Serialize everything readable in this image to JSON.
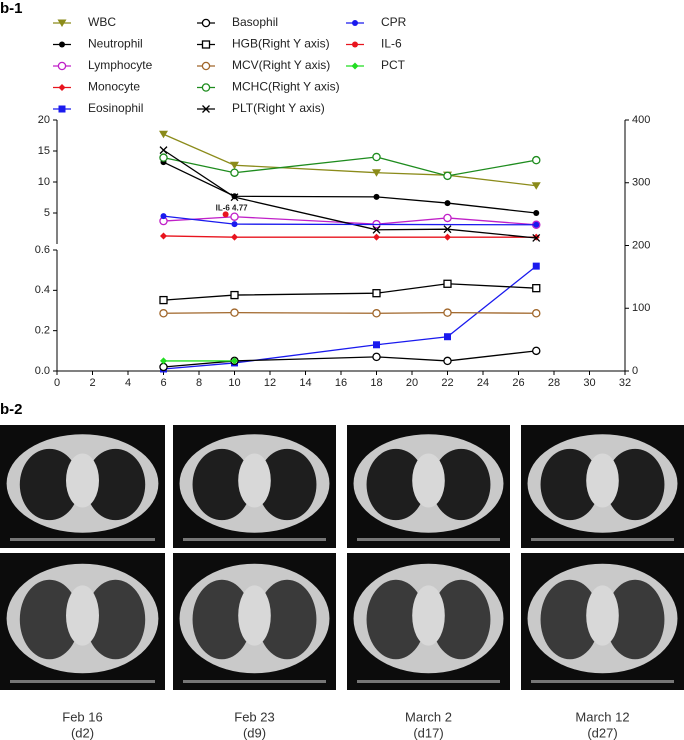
{
  "panel_labels": [
    "b-1",
    "b-2"
  ],
  "chart_data": {
    "type": "line",
    "xlim": [
      0,
      32
    ],
    "xticks": [
      0,
      2,
      4,
      6,
      8,
      10,
      12,
      14,
      16,
      18,
      20,
      22,
      24,
      26,
      28,
      30,
      32
    ],
    "y_segments": [
      {
        "ylim": [
          0,
          0.6
        ],
        "yticks": [
          {
            "value": 0,
            "label": "0.0"
          },
          0.2,
          0.4,
          0.6
        ]
      },
      {
        "ylim": [
          0,
          20
        ],
        "yticks": [
          5,
          10,
          15,
          20
        ]
      }
    ],
    "y2lim": [
      0,
      400
    ],
    "y2ticks": [
      0,
      100,
      200,
      300,
      400
    ],
    "series": [
      {
        "name": "WBC",
        "color": "#8b8b1a",
        "marker": "triangle-down",
        "x": [
          6,
          10,
          18,
          22,
          27
        ],
        "values": [
          17.7,
          12.7,
          11.5,
          11.1,
          9.4
        ]
      },
      {
        "name": "Neutrophil",
        "color": "#000000",
        "marker": "dot",
        "x": [
          6,
          10,
          18,
          22,
          27
        ],
        "values": [
          13.2,
          7.7,
          7.6,
          6.6,
          5.0
        ]
      },
      {
        "name": "Lymphocyte",
        "color": "#c020c8",
        "marker": "open-circle",
        "x": [
          6,
          10,
          18,
          22,
          27
        ],
        "values": [
          3.7,
          4.4,
          3.2,
          4.2,
          3.1
        ]
      },
      {
        "name": "Monocyte",
        "color": "#e8141e",
        "marker": "diamond",
        "x": [
          6,
          10,
          18,
          22,
          27
        ],
        "values": [
          1.3,
          1.1,
          1.1,
          1.1,
          1.1
        ]
      },
      {
        "name": "Eosinophil",
        "color": "#1a1aee",
        "marker": "square",
        "x": [
          6,
          10,
          18,
          22,
          27
        ],
        "values": [
          0.01,
          0.04,
          0.13,
          0.17,
          0.52
        ]
      },
      {
        "name": "Basophil",
        "color": "#000000",
        "marker": "open-circle",
        "x": [
          6,
          10,
          18,
          22,
          27
        ],
        "values": [
          0.02,
          0.05,
          0.07,
          0.05,
          0.1
        ]
      },
      {
        "name": "HGB(Right Y axis)",
        "color": "#000000",
        "marker": "open-square",
        "axis": "y2",
        "x": [
          6,
          10,
          18,
          22,
          27
        ],
        "values": [
          113,
          121,
          124,
          139,
          132
        ]
      },
      {
        "name": "MCV(Right Y axis)",
        "color": "#a0662a",
        "marker": "open-circle",
        "axis": "y2",
        "x": [
          6,
          10,
          18,
          22,
          27
        ],
        "values": [
          92,
          93,
          92,
          93,
          92
        ]
      },
      {
        "name": "MCHC(Right Y axis)",
        "color": "#1e8c1e",
        "marker": "open-circle",
        "axis": "y2",
        "x": [
          6,
          10,
          18,
          22,
          27
        ],
        "values": [
          340,
          316,
          341,
          311,
          336
        ]
      },
      {
        "name": "PLT(Right Y axis)",
        "color": "#000000",
        "marker": "cross",
        "axis": "y2",
        "x": [
          6,
          10,
          18,
          22,
          27
        ],
        "values": [
          352,
          277,
          225,
          226,
          212
        ]
      },
      {
        "name": "CPR",
        "color": "#1a1aee",
        "marker": "dot",
        "x": [
          6,
          10,
          27
        ],
        "values": [
          4.5,
          3.2,
          3.1
        ]
      },
      {
        "name": "IL-6",
        "color": "#e8141e",
        "marker": "dot",
        "x": [
          9.5
        ],
        "values": [
          4.77
        ],
        "value_labels": [
          "IL-6 4.77"
        ]
      },
      {
        "name": "PCT",
        "color": "#22dd22",
        "marker": "diamond",
        "x": [
          6,
          10
        ],
        "values": [
          0.05,
          0.05
        ]
      }
    ]
  },
  "ct_scans": [
    {
      "date": "Feb 16",
      "day": "(d2)"
    },
    {
      "date": "Feb 23",
      "day": "(d9)"
    },
    {
      "date": "March 2",
      "day": "(d17)"
    },
    {
      "date": "March 12",
      "day": "(d27)"
    }
  ]
}
